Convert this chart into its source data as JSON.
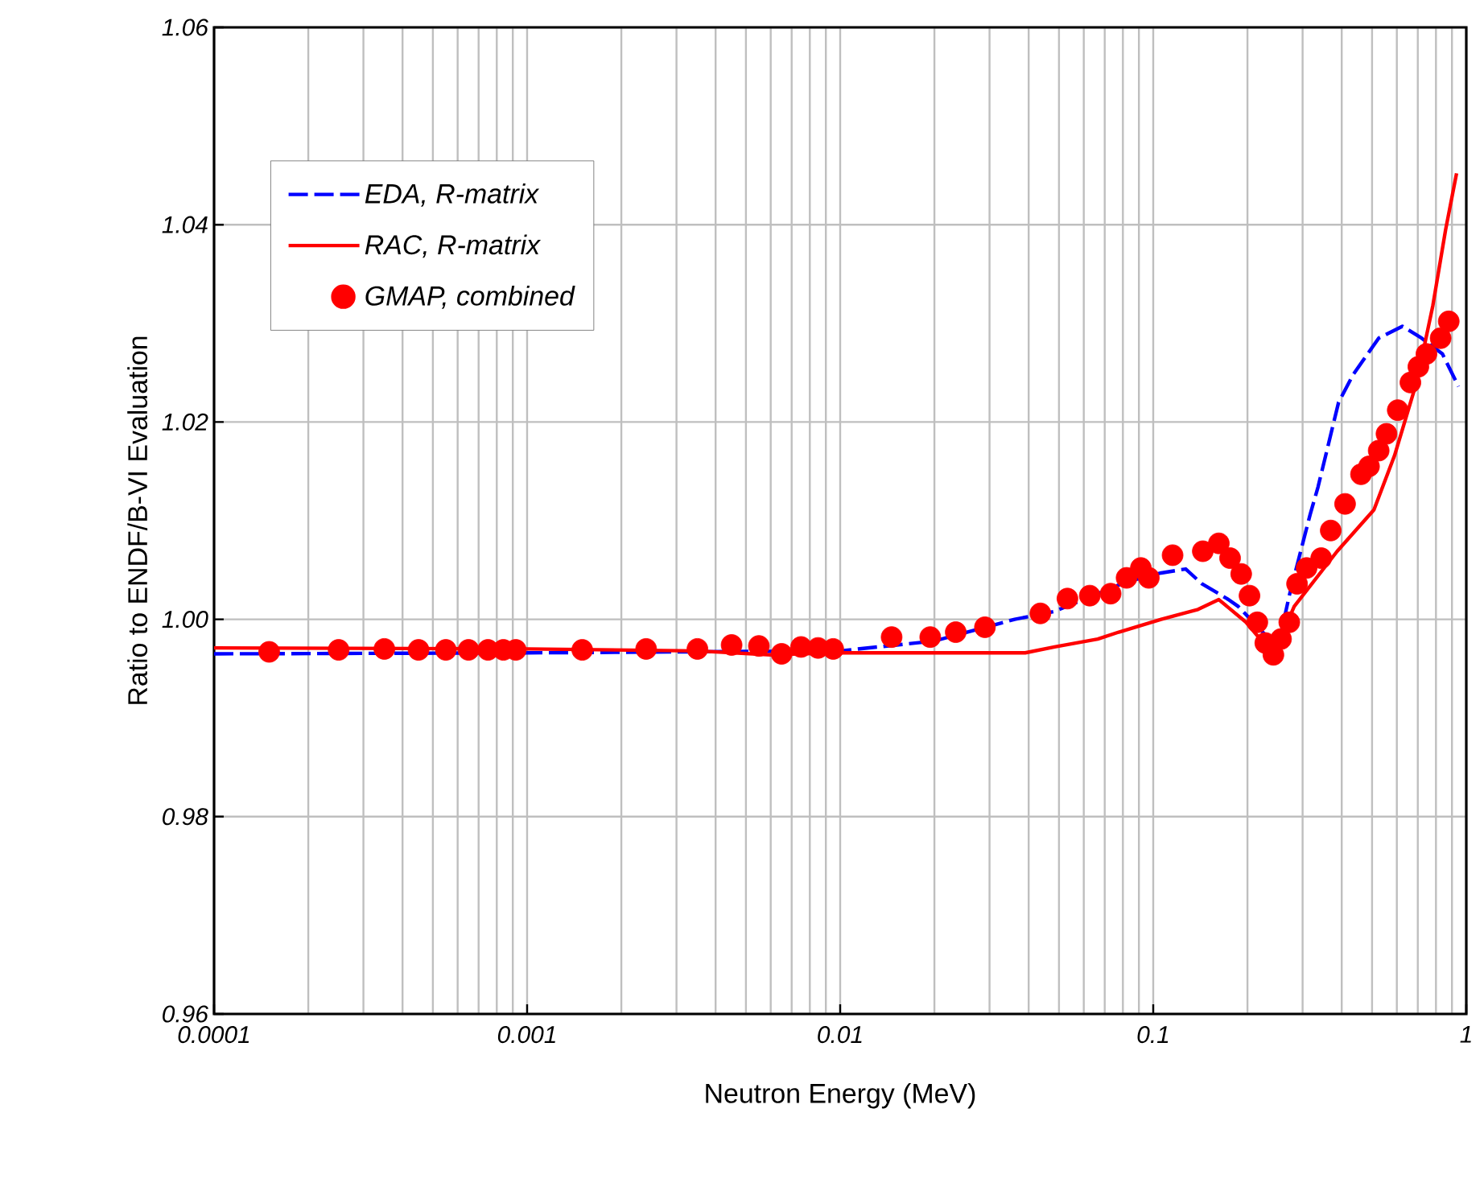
{
  "chart_data": {
    "type": "line",
    "xlabel": "Neutron Energy (MeV)",
    "ylabel": "Ratio to ENDF/B-VI Evaluation",
    "log": "x",
    "grid": true,
    "legend": "top left",
    "xlim": [
      0.0001,
      1
    ],
    "ylim": [
      0.96,
      1.06
    ],
    "xticks": [
      0.0001,
      0.001,
      0.01,
      0.1,
      1
    ],
    "yticks": [
      {
        "value": 0.96,
        "label": "0.96"
      },
      {
        "value": 0.98,
        "label": "0.98"
      },
      {
        "value": 1.0,
        "label": "1.00"
      },
      {
        "value": 1.02,
        "label": "1.02"
      },
      {
        "value": 1.04,
        "label": "1.04"
      },
      {
        "value": 1.06,
        "label": "1.06"
      }
    ],
    "series": [
      {
        "name": "EDA, R-matrix",
        "color": "#0000ff",
        "line_style": "dashed",
        "marker": "none",
        "x": [
          0.0001,
          0.001,
          0.01,
          0.02,
          0.0361,
          0.0484,
          0.0822,
          0.106,
          0.127,
          0.143,
          0.172,
          0.187,
          0.25,
          0.272,
          0.317,
          0.336,
          0.391,
          0.435,
          0.525,
          0.625,
          0.72,
          0.839,
          0.944
        ],
        "values": [
          0.9965,
          0.9966,
          0.9968,
          0.9978,
          1.0,
          1.0008,
          1.0038,
          1.0047,
          1.0051,
          1.0036,
          1.0021,
          1.0013,
          0.9971,
          1.0024,
          1.0106,
          1.0134,
          1.022,
          1.0248,
          1.0285,
          1.0297,
          1.0285,
          1.0269,
          1.0236
        ]
      },
      {
        "name": "RAC, R-matrix",
        "color": "#ff0000",
        "line_style": "solid",
        "marker": "none",
        "x": [
          0.0001,
          0.001,
          0.0035,
          0.006,
          0.0094,
          0.039,
          0.0484,
          0.0665,
          0.0776,
          0.106,
          0.139,
          0.162,
          0.198,
          0.242,
          0.282,
          0.387,
          0.507,
          0.59,
          0.695,
          0.782,
          0.859,
          0.931
        ],
        "values": [
          0.9971,
          0.997,
          0.9968,
          0.9964,
          0.9966,
          0.9966,
          0.9972,
          0.998,
          0.9987,
          1.0,
          1.001,
          1.002,
          0.9997,
          0.9964,
          1.0013,
          1.0069,
          1.0111,
          1.0166,
          1.0241,
          1.0318,
          1.0395,
          1.0452
        ]
      },
      {
        "name": "GMAP, combined",
        "type": "scatter",
        "color": "#ff0000",
        "marker": "circle",
        "x": [
          0.00015,
          0.00025,
          0.00035,
          0.00045,
          0.00055,
          0.00065,
          0.00075,
          0.00084,
          0.00092,
          0.0015,
          0.0024,
          0.0035,
          0.0045,
          0.0055,
          0.0065,
          0.0075,
          0.0085,
          0.0095,
          0.0146,
          0.0194,
          0.0234,
          0.029,
          0.0436,
          0.0532,
          0.0627,
          0.0731,
          0.0822,
          0.0913,
          0.0968,
          0.1153,
          0.144,
          0.162,
          0.176,
          0.191,
          0.203,
          0.215,
          0.228,
          0.242,
          0.256,
          0.272,
          0.288,
          0.309,
          0.344,
          0.369,
          0.41,
          0.461,
          0.489,
          0.525,
          0.556,
          0.604,
          0.663,
          0.703,
          0.746,
          0.828,
          0.879
        ],
        "values": [
          0.9967,
          0.9969,
          0.997,
          0.9969,
          0.9969,
          0.9969,
          0.9969,
          0.9969,
          0.9969,
          0.9969,
          0.997,
          0.997,
          0.9974,
          0.9973,
          0.9965,
          0.9972,
          0.9971,
          0.997,
          0.9982,
          0.9982,
          0.9987,
          0.9992,
          1.0006,
          1.0021,
          1.0024,
          1.0026,
          1.0042,
          1.0052,
          1.0042,
          1.0065,
          1.0069,
          1.0077,
          1.0062,
          1.0046,
          1.0024,
          0.9997,
          0.9976,
          0.9964,
          0.998,
          0.9997,
          1.0036,
          1.0052,
          1.0062,
          1.009,
          1.0117,
          1.0147,
          1.0155,
          1.0171,
          1.0188,
          1.0212,
          1.024,
          1.0256,
          1.0269,
          1.0285,
          1.0302
        ]
      }
    ]
  }
}
